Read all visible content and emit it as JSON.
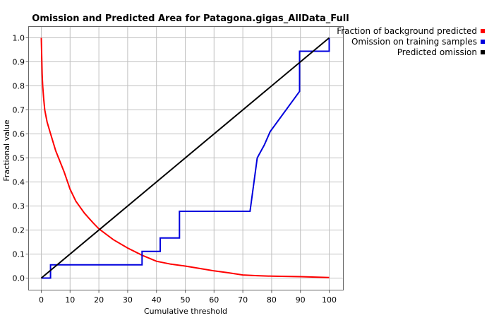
{
  "chart_data": {
    "type": "line",
    "title": "Omission and Predicted Area for Patagona.gigas_AllData_Full",
    "xlabel": "Cumulative threshold",
    "ylabel": "Fractional value",
    "xlim": [
      0,
      100
    ],
    "ylim": [
      0,
      1
    ],
    "x_ticks": [
      "0",
      "10",
      "20",
      "30",
      "40",
      "50",
      "60",
      "70",
      "80",
      "90",
      "100"
    ],
    "y_ticks": [
      "0.0",
      "0.1",
      "0.2",
      "0.3",
      "0.4",
      "0.5",
      "0.6",
      "0.7",
      "0.8",
      "0.9",
      "1.0"
    ],
    "grid": true,
    "legend_position": "top-right",
    "series": [
      {
        "name": "Fraction of background predicted",
        "color": "#ff0000",
        "points": [
          [
            0,
            1.0
          ],
          [
            0.1,
            0.95
          ],
          [
            0.2,
            0.9
          ],
          [
            0.3,
            0.85
          ],
          [
            0.5,
            0.8
          ],
          [
            0.8,
            0.75
          ],
          [
            1.2,
            0.7
          ],
          [
            2,
            0.65
          ],
          [
            3,
            0.61
          ],
          [
            4,
            0.57
          ],
          [
            5,
            0.53
          ],
          [
            6,
            0.5
          ],
          [
            8,
            0.44
          ],
          [
            10,
            0.37
          ],
          [
            12,
            0.32
          ],
          [
            15,
            0.27
          ],
          [
            18,
            0.23
          ],
          [
            20,
            0.205
          ],
          [
            25,
            0.16
          ],
          [
            30,
            0.125
          ],
          [
            35,
            0.095
          ],
          [
            40,
            0.07
          ],
          [
            45,
            0.058
          ],
          [
            50,
            0.05
          ],
          [
            55,
            0.04
          ],
          [
            60,
            0.03
          ],
          [
            65,
            0.022
          ],
          [
            70,
            0.013
          ],
          [
            75,
            0.01
          ],
          [
            80,
            0.008
          ],
          [
            90,
            0.006
          ],
          [
            100,
            0.002
          ]
        ]
      },
      {
        "name": "Omission on training samples",
        "color": "#0000dd",
        "points": [
          [
            0,
            0
          ],
          [
            3.2,
            0
          ],
          [
            3.2,
            0.055
          ],
          [
            35,
            0.055
          ],
          [
            35,
            0.111
          ],
          [
            41.3,
            0.111
          ],
          [
            41.3,
            0.167
          ],
          [
            48,
            0.167
          ],
          [
            48,
            0.278
          ],
          [
            72.5,
            0.278
          ],
          [
            75,
            0.5
          ],
          [
            77.5,
            0.555
          ],
          [
            79.5,
            0.61
          ],
          [
            89.7,
            0.777
          ],
          [
            89.7,
            0.944
          ],
          [
            100,
            0.944
          ],
          [
            100,
            1.0
          ]
        ]
      },
      {
        "name": "Predicted omission",
        "color": "#000000",
        "points": [
          [
            0,
            0
          ],
          [
            100,
            1
          ]
        ]
      }
    ]
  }
}
